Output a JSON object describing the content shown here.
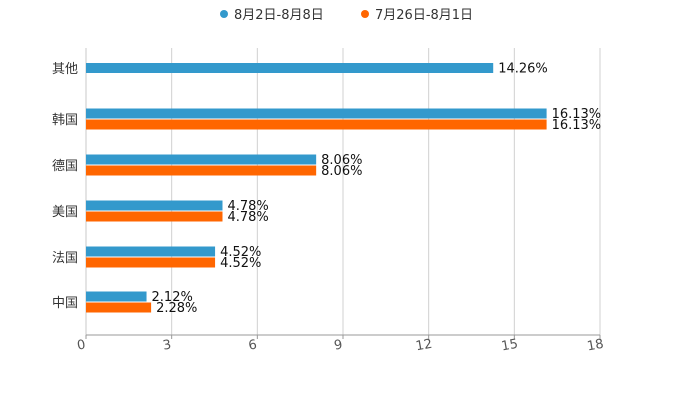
{
  "chart_data": {
    "type": "bar",
    "orientation": "horizontal",
    "title": "",
    "xlabel": "",
    "ylabel": "",
    "xlim": [
      0,
      18
    ],
    "ticks": [
      "0",
      "3",
      "6",
      "9",
      "12",
      "15",
      "18"
    ],
    "tick_values": [
      0,
      3,
      6,
      9,
      12,
      15,
      18
    ],
    "grid": true,
    "legend_position": "top-center",
    "categories": [
      "其他",
      "韩国",
      "德国",
      "美国",
      "法国",
      "中国"
    ],
    "series": [
      {
        "name": "8月2日-8月8日",
        "color": "#3399cc",
        "values": [
          14.26,
          16.13,
          8.06,
          4.78,
          4.52,
          2.12
        ],
        "labels": [
          "14.26%",
          "16.13%",
          "8.06%",
          "4.78%",
          "4.52%",
          "2.12%"
        ]
      },
      {
        "name": "7月26日-8月1日",
        "color": "#ff6600",
        "values": [
          null,
          16.13,
          8.06,
          4.78,
          4.52,
          2.28
        ],
        "labels": [
          null,
          "16.13%",
          "8.06%",
          "4.78%",
          "4.52%",
          "2.28%"
        ]
      }
    ]
  }
}
